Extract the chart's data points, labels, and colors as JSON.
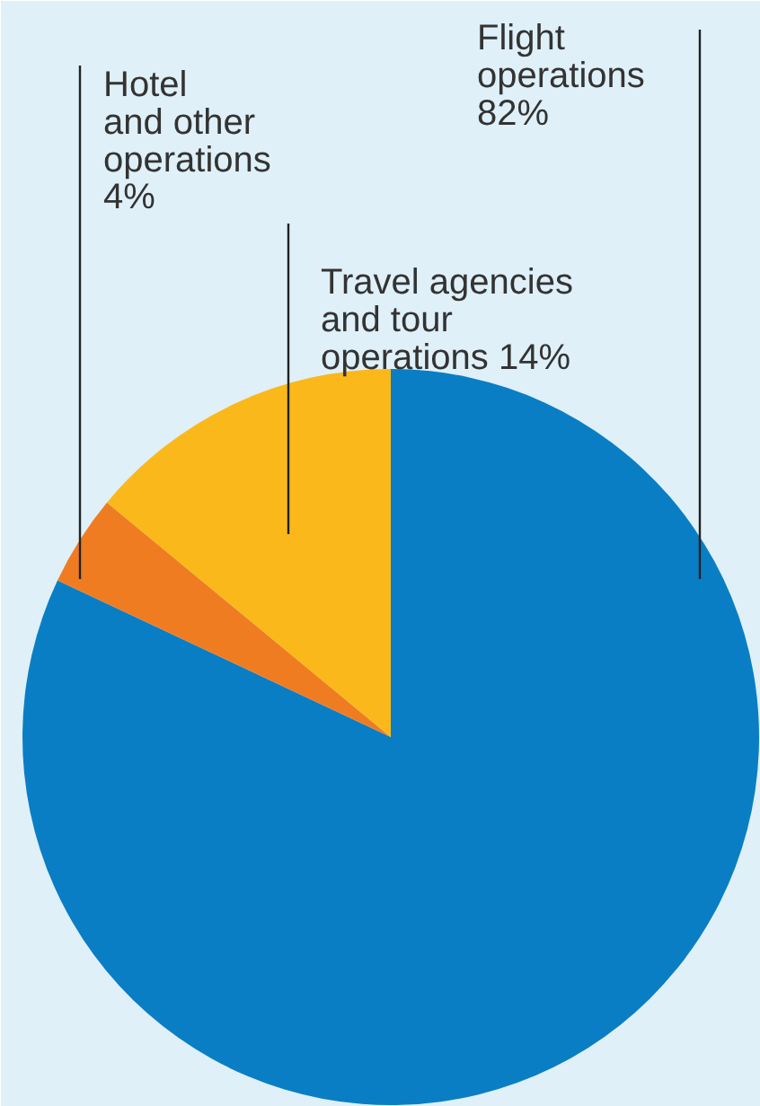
{
  "chart_data": {
    "type": "pie",
    "categories": [
      "Flight operations",
      "Hotel and other operations",
      "Travel agencies and tour operations"
    ],
    "values": [
      82,
      4,
      14
    ],
    "value_labels": [
      "82%",
      "4%",
      "14%"
    ],
    "colors": [
      "#0a7ec4",
      "#f07c21",
      "#fbb81b"
    ]
  }
}
